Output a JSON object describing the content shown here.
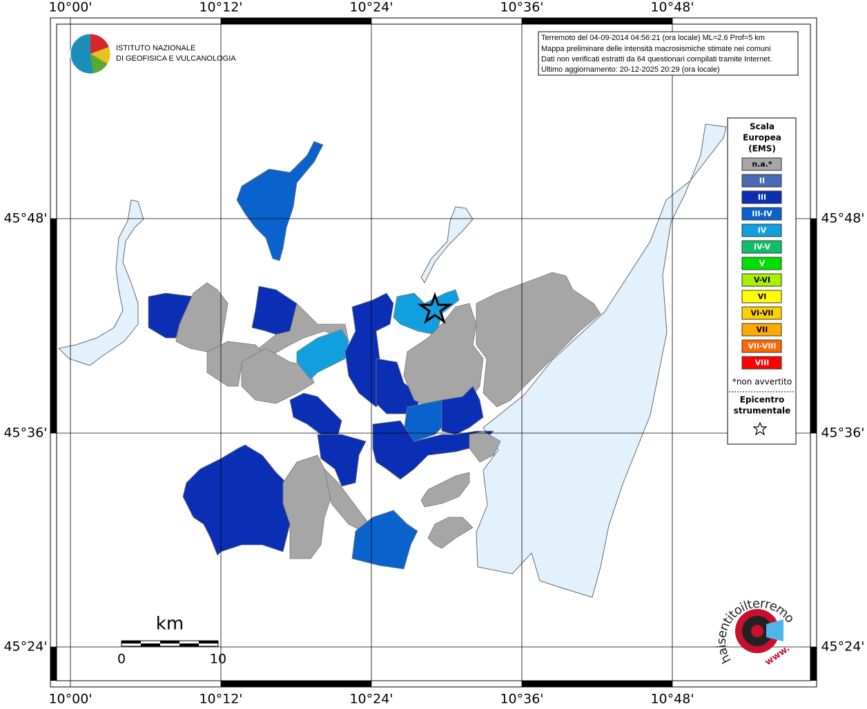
{
  "header": {
    "institute": [
      "ISTITUTO NAZIONALE",
      "DI GEOFISICA E VULCANOLOGIA"
    ]
  },
  "info": [
    "Terremoto del 04-09-2014 04:56:21 (ora locale) ML=2.6 Prof=5 km",
    "Mappa preliminare delle intensità macrosismiche stimate nei comuni",
    "Dati non verificati estratti da 64 questionari compilati tramite Internet.",
    "Ultimo aggiornamento: 20-12-2025 20:29 (ora locale)"
  ],
  "axes": {
    "longitudes": [
      "10°00'",
      "10°12'",
      "10°24'",
      "10°36'",
      "10°48'"
    ],
    "latitudes": [
      "45°48'",
      "45°36'",
      "45°24'"
    ]
  },
  "legend": {
    "title": [
      "Scala",
      "Europea",
      "(EMS)"
    ],
    "items": [
      {
        "label": "n.a.*",
        "color": "#a6a6a6"
      },
      {
        "label": "II",
        "color": "#4a6ab8"
      },
      {
        "label": "III",
        "color": "#0a2fb5"
      },
      {
        "label": "III-IV",
        "color": "#0a63cc"
      },
      {
        "label": "IV",
        "color": "#119fe0"
      },
      {
        "label": "IV-V",
        "color": "#0fbf6a"
      },
      {
        "label": "V",
        "color": "#00e000"
      },
      {
        "label": "V-VI",
        "color": "#aaf000"
      },
      {
        "label": "VI",
        "color": "#ffff00"
      },
      {
        "label": "VI-VII",
        "color": "#ffd000"
      },
      {
        "label": "VII",
        "color": "#ffaa00"
      },
      {
        "label": "VII-VIII",
        "color": "#ff6600"
      },
      {
        "label": "VIII",
        "color": "#ff0000"
      }
    ],
    "note": "*non avvertito",
    "epicenter": [
      "Epicentro",
      "strumentale"
    ]
  },
  "scale_bar": {
    "unit": "km",
    "labels": [
      "0",
      "10"
    ]
  },
  "site_logo": "haisentitoilterremoto.it",
  "site_prefix": "www."
}
